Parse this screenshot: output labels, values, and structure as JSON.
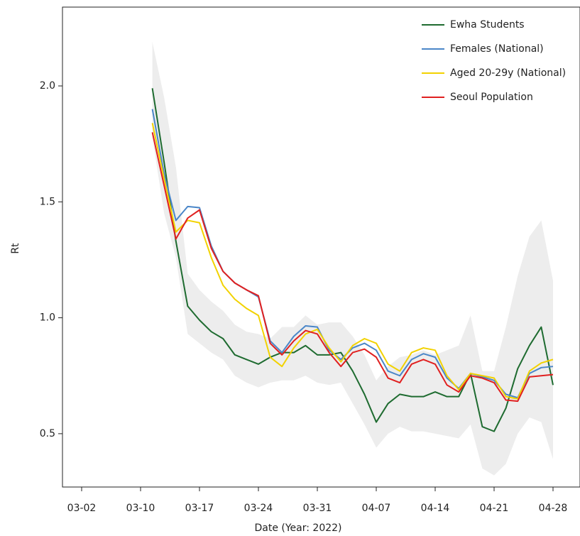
{
  "chart_data": {
    "type": "line",
    "x_label": "Date (Year: 2022)",
    "y_label": "Rt",
    "categories": [
      "03-02",
      null,
      null,
      null,
      null,
      "03-10",
      null,
      null,
      null,
      null,
      "03-17",
      null,
      null,
      null,
      null,
      "03-24",
      null,
      null,
      null,
      null,
      "03-31",
      null,
      null,
      null,
      null,
      "04-07",
      null,
      null,
      null,
      null,
      "04-14",
      null,
      null,
      null,
      null,
      "04-21",
      null,
      null,
      null,
      null,
      "04-28"
    ],
    "ylim": [
      0.27,
      2.34
    ],
    "yticks": [
      0.5,
      {
        "value": 1,
        "label": "1.0"
      },
      1.5,
      {
        "value": 2,
        "label": "2.0"
      }
    ],
    "band": {
      "color": "#ededed",
      "lower": [
        null,
        null,
        null,
        null,
        null,
        null,
        1.78,
        1.45,
        1.26,
        0.93,
        0.89,
        0.85,
        0.82,
        0.75,
        0.72,
        0.7,
        0.72,
        0.73,
        0.73,
        0.75,
        0.72,
        0.71,
        0.72,
        0.63,
        0.54,
        0.44,
        0.5,
        0.53,
        0.51,
        0.51,
        0.5,
        0.49,
        0.48,
        0.54,
        0.35,
        0.32,
        0.37,
        0.5,
        0.57,
        0.55,
        0.39
      ],
      "upper": [
        null,
        null,
        null,
        null,
        null,
        null,
        2.19,
        1.95,
        1.65,
        1.19,
        1.12,
        1.07,
        1.03,
        0.97,
        0.94,
        0.93,
        0.91,
        0.96,
        0.96,
        1.01,
        0.97,
        0.98,
        0.98,
        0.92,
        0.84,
        0.73,
        0.79,
        0.83,
        0.84,
        0.86,
        0.84,
        0.86,
        0.88,
        1.01,
        0.77,
        0.77,
        0.96,
        1.18,
        1.35,
        1.42,
        1.16
      ]
    },
    "series": [
      {
        "name": "Ewha Students",
        "color": "#1e6b30",
        "values": [
          null,
          null,
          null,
          null,
          null,
          null,
          1.99,
          1.67,
          1.33,
          1.05,
          0.99,
          0.94,
          0.91,
          0.84,
          0.82,
          0.8,
          0.83,
          0.85,
          0.85,
          0.88,
          0.84,
          0.84,
          0.85,
          0.77,
          0.67,
          0.55,
          0.63,
          0.67,
          0.66,
          0.66,
          0.68,
          0.66,
          0.66,
          0.76,
          0.53,
          0.51,
          0.61,
          0.78,
          0.88,
          0.96,
          0.71
        ]
      },
      {
        "name": "Females (National)",
        "color": "#4a86c8",
        "values": [
          null,
          null,
          null,
          null,
          null,
          null,
          1.9,
          1.62,
          1.42,
          1.48,
          1.475,
          1.31,
          1.2,
          1.15,
          1.12,
          1.09,
          0.9,
          0.85,
          0.92,
          0.965,
          0.96,
          0.86,
          0.82,
          0.87,
          0.89,
          0.86,
          0.77,
          0.75,
          0.82,
          0.845,
          0.83,
          0.74,
          0.695,
          0.76,
          0.745,
          0.73,
          0.67,
          0.655,
          0.76,
          0.785,
          0.79
        ]
      },
      {
        "name": "Aged 20-29y (National)",
        "color": "#f2d200",
        "values": [
          null,
          null,
          null,
          null,
          null,
          null,
          1.84,
          1.6,
          1.37,
          1.42,
          1.41,
          1.26,
          1.14,
          1.08,
          1.04,
          1.01,
          0.83,
          0.79,
          0.87,
          0.93,
          0.95,
          0.87,
          0.81,
          0.88,
          0.91,
          0.89,
          0.8,
          0.77,
          0.85,
          0.87,
          0.86,
          0.75,
          0.69,
          0.76,
          0.75,
          0.74,
          0.66,
          0.65,
          0.77,
          0.805,
          0.82
        ]
      },
      {
        "name": "Seoul Population",
        "color": "#e02020",
        "values": [
          null,
          null,
          null,
          null,
          null,
          null,
          1.8,
          1.57,
          1.34,
          1.43,
          1.465,
          1.3,
          1.2,
          1.15,
          1.12,
          1.095,
          0.89,
          0.84,
          0.9,
          0.945,
          0.93,
          0.85,
          0.79,
          0.85,
          0.865,
          0.83,
          0.74,
          0.72,
          0.8,
          0.82,
          0.8,
          0.71,
          0.68,
          0.75,
          0.74,
          0.72,
          0.645,
          0.64,
          0.745,
          0.75,
          0.755
        ]
      }
    ]
  }
}
